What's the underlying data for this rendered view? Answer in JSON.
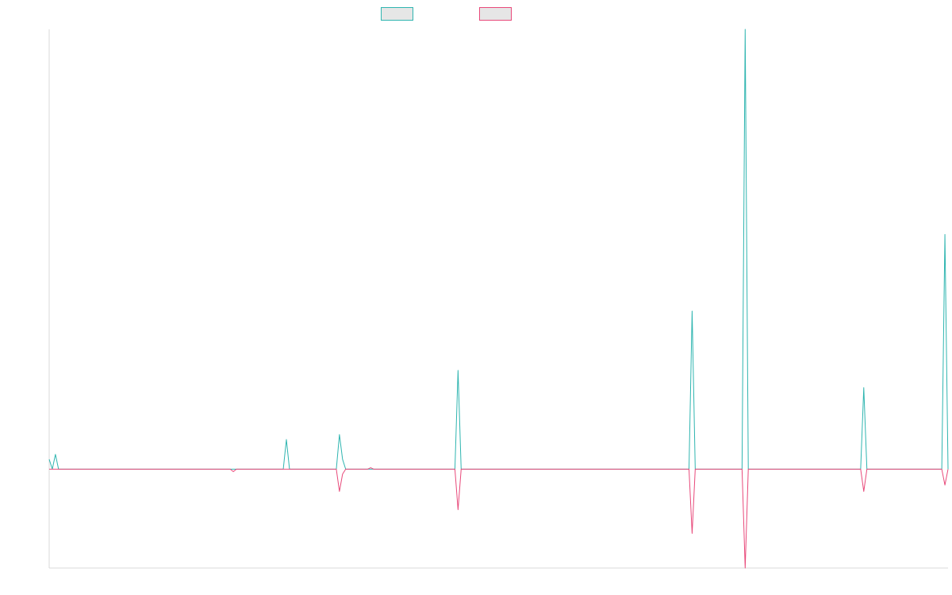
{
  "chart_data": {
    "type": "line",
    "title": "",
    "xlabel": "",
    "ylabel": "",
    "grid": false,
    "legend_position": "top-center",
    "ylim": [
      -20,
      89
    ],
    "x_count": 288,
    "series": [
      {
        "name": "",
        "color": "#2fb5b0",
        "legend_fill": "#e6e6e6",
        "points": [
          [
            0,
            2
          ],
          [
            1,
            0
          ],
          [
            2,
            3
          ],
          [
            3,
            0
          ],
          [
            75,
            0
          ],
          [
            76,
            6
          ],
          [
            77,
            0
          ],
          [
            92,
            0
          ],
          [
            93,
            7
          ],
          [
            94,
            2
          ],
          [
            95,
            0
          ],
          [
            130,
            0
          ],
          [
            131,
            20
          ],
          [
            132,
            0
          ],
          [
            205,
            0
          ],
          [
            206,
            32
          ],
          [
            207,
            0
          ],
          [
            222,
            0
          ],
          [
            223,
            89
          ],
          [
            224,
            0
          ],
          [
            260,
            0
          ],
          [
            261,
            16.5
          ],
          [
            262,
            0
          ],
          [
            286,
            0
          ],
          [
            287,
            47.5
          ],
          [
            288,
            0
          ]
        ]
      },
      {
        "name": "",
        "color": "#e8497a",
        "legend_fill": "#e6e6e6",
        "points": [
          [
            0,
            0
          ],
          [
            58,
            0
          ],
          [
            59,
            -0.5
          ],
          [
            60,
            0
          ],
          [
            92,
            0
          ],
          [
            93,
            -4.5
          ],
          [
            94,
            -1
          ],
          [
            95,
            0
          ],
          [
            102,
            0
          ],
          [
            103,
            0.3
          ],
          [
            104,
            0
          ],
          [
            130,
            0
          ],
          [
            131,
            -8.2
          ],
          [
            132,
            0
          ],
          [
            205,
            0
          ],
          [
            206,
            -13
          ],
          [
            207,
            0
          ],
          [
            222,
            0
          ],
          [
            223,
            -20
          ],
          [
            224,
            0
          ],
          [
            260,
            0
          ],
          [
            261,
            -4.5
          ],
          [
            262,
            0
          ],
          [
            286,
            0
          ],
          [
            287,
            -3.2
          ],
          [
            288,
            0
          ]
        ]
      }
    ]
  }
}
